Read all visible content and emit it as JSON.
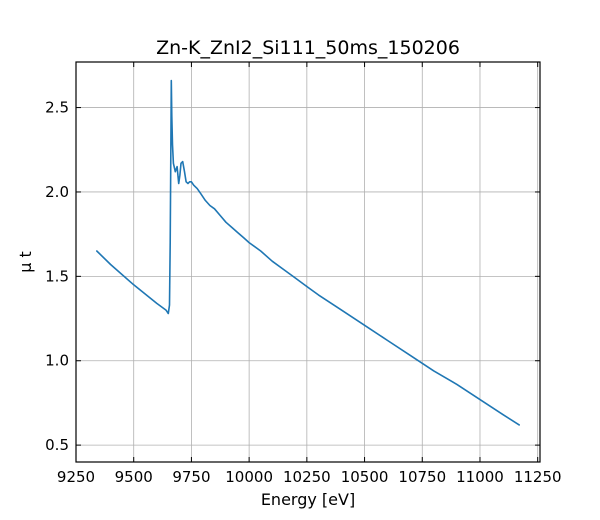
{
  "chart_data": {
    "type": "line",
    "title": "Zn-K_ZnI2_Si111_50ms_150206",
    "xlabel": "Energy [eV]",
    "ylabel": "μ t",
    "xlim": [
      9250,
      11260
    ],
    "ylim": [
      0.4,
      2.77
    ],
    "xticks": [
      9250,
      9500,
      9750,
      10000,
      10250,
      10500,
      10750,
      11000,
      11250
    ],
    "xtick_labels": [
      "9250",
      "9500",
      "9750",
      "10000",
      "10250",
      "10500",
      "10750",
      "11000",
      "11250"
    ],
    "yticks": [
      0.5,
      1.0,
      1.5,
      2.0,
      2.5
    ],
    "ytick_labels": [
      "0.5",
      "1.0",
      "1.5",
      "2.0",
      "2.5"
    ],
    "grid": true,
    "series": [
      {
        "color": "#1f77b4",
        "x": [
          9340,
          9400,
          9500,
          9600,
          9640,
          9650,
          9655,
          9658,
          9661,
          9663,
          9665,
          9668,
          9672,
          9680,
          9688,
          9695,
          9700,
          9705,
          9712,
          9720,
          9727,
          9735,
          9742,
          9750,
          9760,
          9775,
          9790,
          9810,
          9830,
          9850,
          9875,
          9900,
          9925,
          9950,
          9975,
          10000,
          10050,
          10100,
          10150,
          10200,
          10250,
          10300,
          10400,
          10500,
          10600,
          10700,
          10800,
          10900,
          11000,
          11100,
          11170
        ],
        "y": [
          1.65,
          1.57,
          1.45,
          1.34,
          1.3,
          1.28,
          1.33,
          1.7,
          2.3,
          2.66,
          2.45,
          2.28,
          2.17,
          2.12,
          2.15,
          2.05,
          2.1,
          2.17,
          2.18,
          2.12,
          2.06,
          2.05,
          2.06,
          2.06,
          2.04,
          2.02,
          1.99,
          1.95,
          1.92,
          1.9,
          1.86,
          1.82,
          1.79,
          1.76,
          1.73,
          1.7,
          1.65,
          1.59,
          1.54,
          1.49,
          1.44,
          1.39,
          1.3,
          1.21,
          1.12,
          1.03,
          0.94,
          0.86,
          0.77,
          0.68,
          0.62
        ]
      }
    ]
  }
}
